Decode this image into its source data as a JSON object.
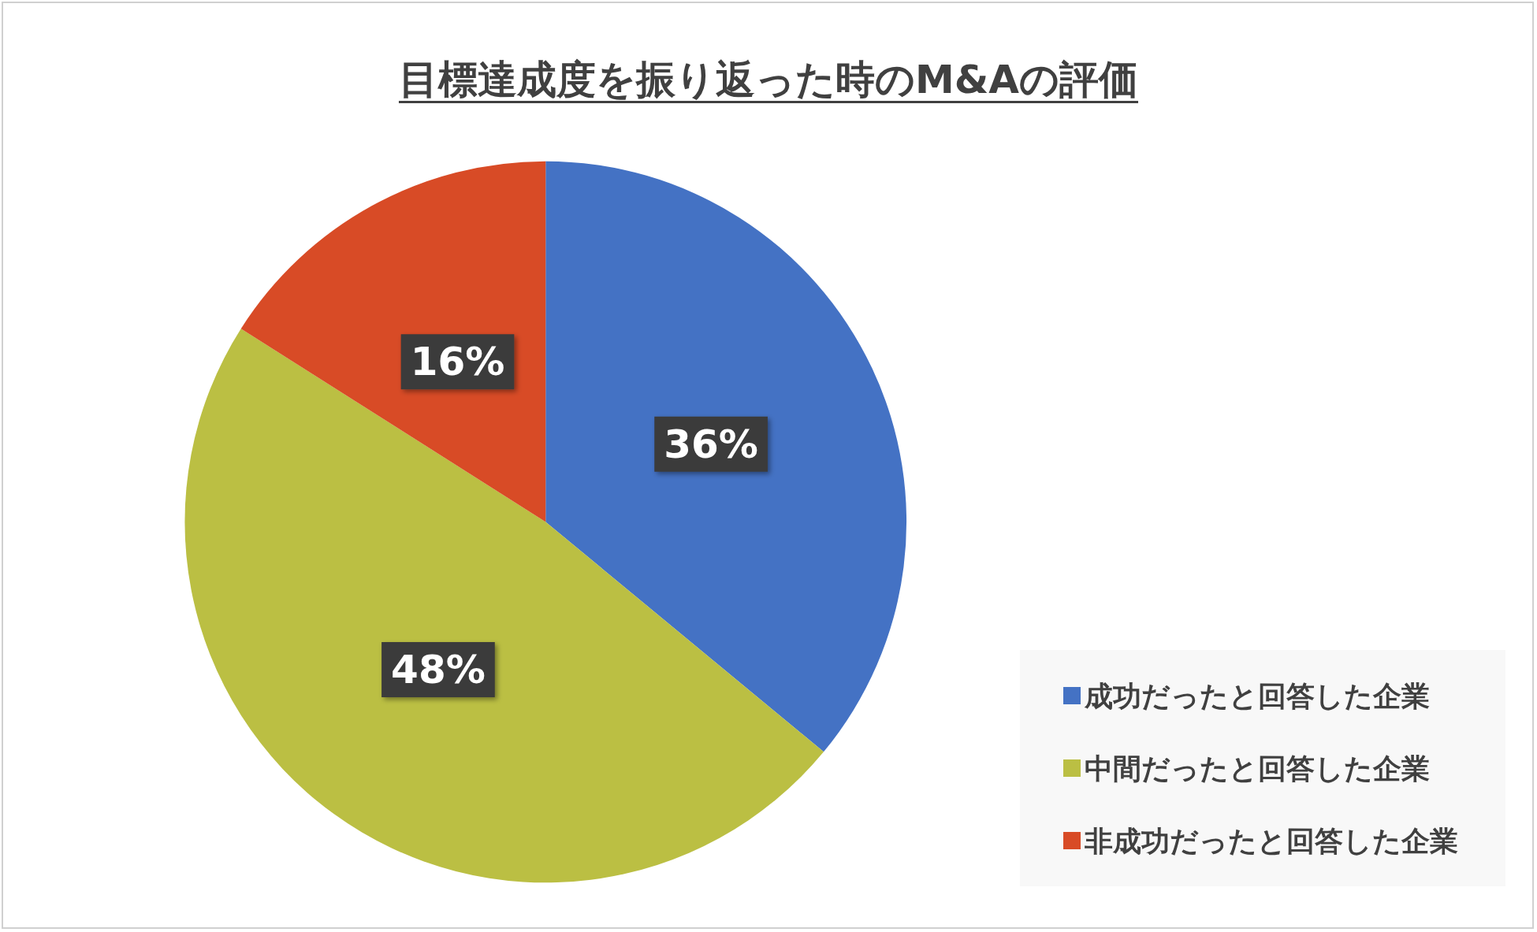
{
  "chart_data": {
    "type": "pie",
    "title": "目標達成度を振り返った時のM&Aの評価",
    "categories": [
      "成功だったと回答した企業",
      "中間だったと回答した企業",
      "非成功だったと回答した企業"
    ],
    "values": [
      36,
      48,
      16
    ],
    "colors": [
      "#4472c4",
      "#bbbf43",
      "#d84b26"
    ],
    "value_labels": [
      "36%",
      "48%",
      "16%"
    ],
    "legend": "bottom right"
  }
}
